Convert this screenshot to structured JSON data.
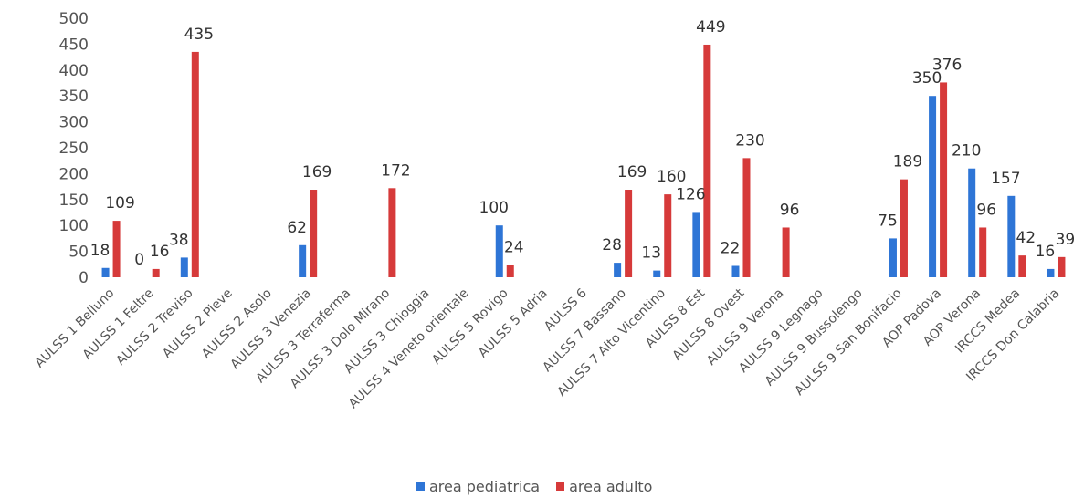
{
  "chart_data": {
    "type": "bar",
    "title": "",
    "xlabel": "",
    "ylabel": "",
    "ylim": [
      0,
      500
    ],
    "yticks": [
      0,
      50,
      100,
      150,
      200,
      250,
      300,
      350,
      400,
      450,
      500
    ],
    "grid": false,
    "legend_position": "bottom",
    "categories": [
      "AULSS 1 Belluno",
      "AULSS 1 Feltre",
      "AULSS 2 Treviso",
      "AULSS 2 Pieve",
      "AULSS 2 Asolo",
      "AULSS 3 Venezia",
      "AULSS 3 Terraferma",
      "AULSS 3 Dolo Mirano",
      "AULSS 3 Chioggia",
      "AULSS 4 Veneto orientale",
      "AULSS 5 Rovigo",
      "AULSS 5 Adria",
      "AULSS 6",
      "AULSS 7 Bassano",
      "AULSS 7 Alto Vicentino",
      "AULSS 8 Est",
      "AULSS 8 Ovest",
      "AULSS 9 Verona",
      "AULSS 9 Legnago",
      "AULSS 9 Bussolengo",
      "AULSS 9 San Bonifacio",
      "AOP Padova",
      "AOP Verona",
      "IRCCS Medea",
      "IRCCS Don Calabria"
    ],
    "series": [
      {
        "name": "area pediatrica",
        "color": "#2e75d6",
        "values": [
          18,
          0,
          38,
          null,
          null,
          62,
          null,
          null,
          null,
          null,
          100,
          null,
          null,
          28,
          13,
          126,
          22,
          null,
          null,
          null,
          75,
          350,
          210,
          157,
          16
        ]
      },
      {
        "name": "area adulto",
        "color": "#d63a3a",
        "values": [
          109,
          16,
          435,
          null,
          null,
          169,
          null,
          172,
          null,
          null,
          24,
          null,
          null,
          169,
          160,
          449,
          230,
          96,
          null,
          null,
          189,
          376,
          96,
          42,
          39
        ]
      }
    ]
  }
}
